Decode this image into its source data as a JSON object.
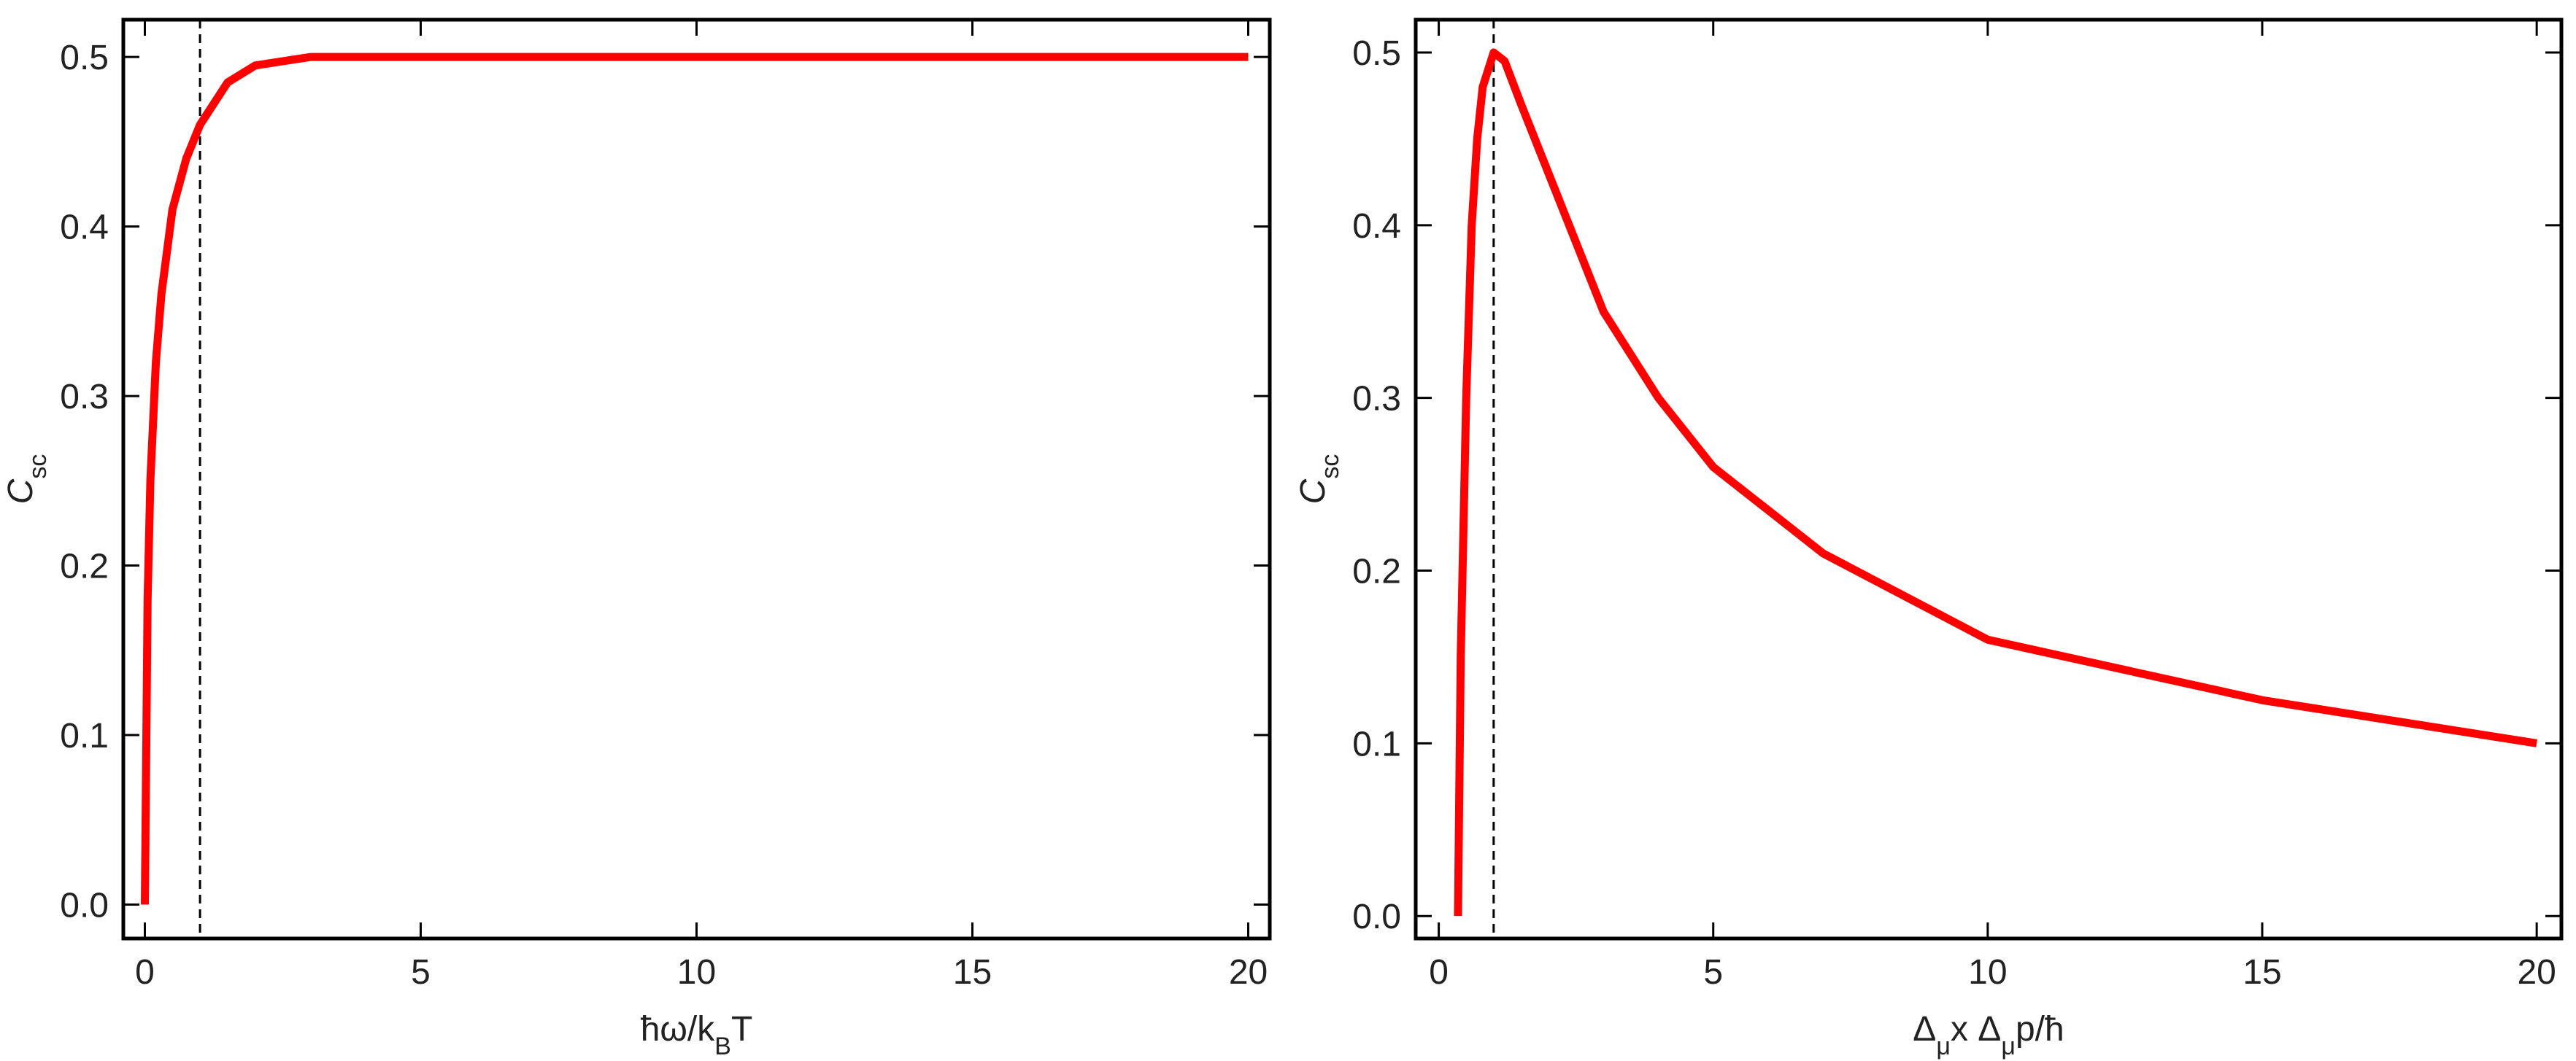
{
  "chart_data": [
    {
      "type": "line",
      "xlabel": [
        {
          "text": "ħω/k",
          "sub": false
        },
        {
          "text": "B",
          "sub": true
        },
        {
          "text": "T",
          "sub": false
        }
      ],
      "ylabel": [
        {
          "text": "C",
          "sub": false
        },
        {
          "text": "sc",
          "sub": true
        }
      ],
      "x": [
        0,
        0.05,
        0.1,
        0.2,
        0.3,
        0.5,
        0.75,
        1,
        1.5,
        2,
        3,
        5,
        10,
        20
      ],
      "series": [
        {
          "color": "#ff0000",
          "values": [
            0,
            0.18,
            0.25,
            0.32,
            0.36,
            0.41,
            0.44,
            0.46,
            0.485,
            0.495,
            0.5,
            0.5,
            0.5,
            0.5
          ]
        }
      ],
      "vline": 1,
      "xlim": [
        -0.39,
        20.39
      ],
      "ylim": [
        -0.02,
        0.522
      ],
      "xticks": [
        0,
        5,
        10,
        15,
        20
      ],
      "yticks": [
        {
          "value": 0,
          "label": "0.0"
        },
        0.1,
        0.2,
        0.3,
        0.4,
        0.5
      ]
    },
    {
      "type": "line",
      "xlabel": [
        {
          "text": "Δ",
          "sub": false
        },
        {
          "text": "μ",
          "sub": true
        },
        {
          "text": "x Δ",
          "sub": false
        },
        {
          "text": "μ",
          "sub": true
        },
        {
          "text": "p/ħ",
          "sub": false
        }
      ],
      "ylabel": [
        {
          "text": "C",
          "sub": false
        },
        {
          "text": "sc",
          "sub": true
        }
      ],
      "x": [
        0.35,
        0.4,
        0.5,
        0.6,
        0.7,
        0.8,
        1,
        1.2,
        1.5,
        2,
        3,
        4,
        5,
        7,
        10,
        15,
        20
      ],
      "series": [
        {
          "color": "#ff0000",
          "values": [
            0,
            0.15,
            0.3,
            0.4,
            0.45,
            0.48,
            0.5,
            0.495,
            0.47,
            0.43,
            0.35,
            0.3,
            0.26,
            0.21,
            0.16,
            0.125,
            0.1
          ]
        }
      ],
      "vline": 1,
      "xlim": [
        -0.42,
        20.45
      ],
      "ylim": [
        -0.013,
        0.519
      ],
      "xticks": [
        0,
        5,
        10,
        15,
        20
      ],
      "yticks": [
        {
          "value": 0,
          "label": "0.0"
        },
        0.1,
        0.2,
        0.3,
        0.4,
        0.5
      ]
    }
  ]
}
